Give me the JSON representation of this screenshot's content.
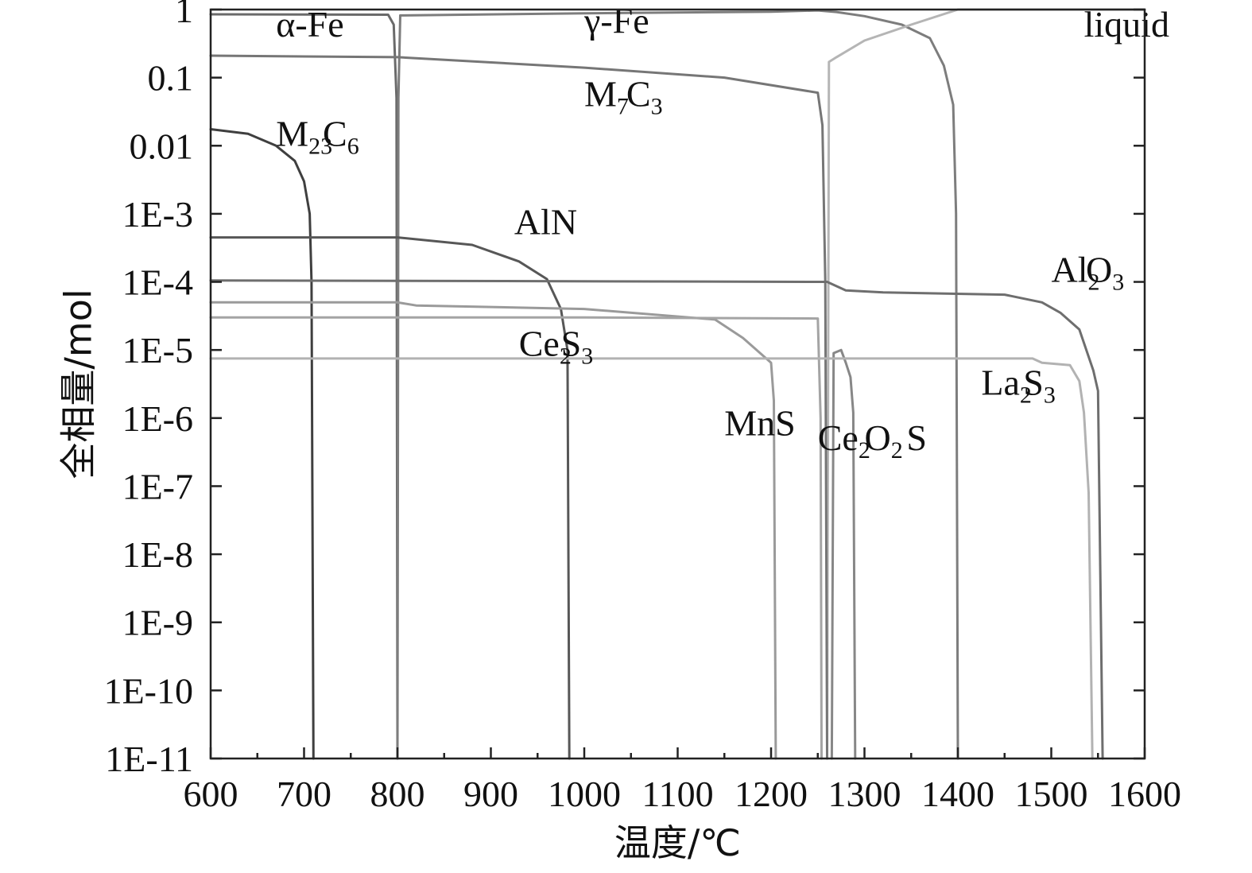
{
  "chart_data": {
    "type": "line",
    "xlabel": "温度/℃",
    "ylabel": "全相量/mol",
    "xlim": [
      600,
      1600
    ],
    "ylim_log10": [
      -11,
      0
    ],
    "y_scale": "log",
    "grid": false,
    "x_ticks": [
      600,
      700,
      800,
      900,
      1000,
      1100,
      1200,
      1300,
      1400,
      1500,
      1600
    ],
    "x_tick_labels": [
      "600",
      "700",
      "800",
      "900",
      "1000",
      "1100",
      "1200",
      "1300",
      "1400",
      "1500",
      "1600"
    ],
    "y_ticks": [
      1,
      0.1,
      0.01,
      0.001,
      0.0001,
      1e-05,
      1e-06,
      1e-07,
      1e-08,
      1e-09,
      1e-10,
      1e-11
    ],
    "y_tick_labels": [
      "1",
      "0.1",
      "0.01",
      "1E-3",
      "1E-4",
      "1E-5",
      "1E-6",
      "1E-7",
      "1E-8",
      "1E-9",
      "1E-10",
      "1E-11"
    ],
    "series": [
      {
        "id": "alpha-fe",
        "color": "#6a6a6a",
        "labels": [
          {
            "text": "α-Fe",
            "sub": "",
            "x": 670,
            "y": 0.4
          }
        ],
        "points": [
          [
            600,
            0.85
          ],
          [
            790,
            0.84
          ],
          [
            796,
            0.6
          ],
          [
            799,
            0.05
          ],
          [
            800,
            1e-11
          ]
        ]
      },
      {
        "id": "gamma-fe",
        "color": "#7d7d7d",
        "labels": [
          {
            "text": "γ-Fe",
            "sub": "",
            "x": 1000,
            "y": 0.45
          }
        ],
        "points": [
          [
            800,
            1e-11
          ],
          [
            801,
            0.05
          ],
          [
            803,
            0.82
          ],
          [
            1000,
            0.88
          ],
          [
            1200,
            0.93
          ],
          [
            1250,
            0.97
          ],
          [
            1270,
            0.92
          ],
          [
            1300,
            0.8
          ],
          [
            1340,
            0.6
          ],
          [
            1370,
            0.38
          ],
          [
            1385,
            0.15
          ],
          [
            1395,
            0.04
          ],
          [
            1398,
            0.001
          ],
          [
            1400,
            1e-11
          ]
        ]
      },
      {
        "id": "liquid",
        "color": "#b5b5b5",
        "labels": [
          {
            "text": "liquid",
            "sub": "",
            "x": 1535,
            "y": 0.4
          }
        ],
        "points": [
          [
            1260,
            1e-11
          ],
          [
            1262,
            0.17
          ],
          [
            1270,
            0.2
          ],
          [
            1300,
            0.35
          ],
          [
            1350,
            0.6
          ],
          [
            1400,
            1.0
          ],
          [
            1600,
            1.0
          ]
        ]
      },
      {
        "id": "m7c3",
        "color": "#767676",
        "labels": [
          {
            "text": "M",
            "sub": "7",
            "x": 1000,
            "y": 0.038
          },
          {
            "text": "C",
            "sub": "3",
            "x": 1045,
            "y": 0.038
          }
        ],
        "points": [
          [
            600,
            0.21
          ],
          [
            800,
            0.2
          ],
          [
            1000,
            0.14
          ],
          [
            1150,
            0.1
          ],
          [
            1250,
            0.06
          ],
          [
            1255,
            0.02
          ],
          [
            1258,
            0.0001
          ],
          [
            1260,
            1e-11
          ]
        ]
      },
      {
        "id": "m23c6",
        "color": "#3f3f3f",
        "labels": [
          {
            "text": "M",
            "sub": "23",
            "x": 670,
            "y": 0.01
          },
          {
            "text": "C",
            "sub": "6",
            "x": 720,
            "y": 0.01
          }
        ],
        "points": [
          [
            600,
            0.0175
          ],
          [
            640,
            0.015
          ],
          [
            670,
            0.01
          ],
          [
            690,
            0.006
          ],
          [
            700,
            0.003
          ],
          [
            706,
            0.001
          ],
          [
            708,
            0.0001
          ],
          [
            710,
            1e-11
          ]
        ]
      },
      {
        "id": "aln",
        "color": "#575757",
        "labels": [
          {
            "text": "AlN",
            "sub": "",
            "x": 925,
            "y": 0.0005
          }
        ],
        "points": [
          [
            600,
            0.00045
          ],
          [
            800,
            0.00045
          ],
          [
            880,
            0.00035
          ],
          [
            930,
            0.0002
          ],
          [
            960,
            0.00011
          ],
          [
            975,
            4e-05
          ],
          [
            982,
            1e-05
          ],
          [
            984,
            1e-11
          ]
        ]
      },
      {
        "id": "al2o3",
        "color": "#6e6e6e",
        "labels": [
          {
            "text": "Al",
            "sub": "2",
            "x": 1500,
            "y": 0.0001
          },
          {
            "text": "O",
            "sub": "3",
            "x": 1537,
            "y": 0.0001
          }
        ],
        "points": [
          [
            600,
            0.000105
          ],
          [
            1260,
            0.0001
          ],
          [
            1280,
            7.5e-05
          ],
          [
            1320,
            7e-05
          ],
          [
            1450,
            6.5e-05
          ],
          [
            1490,
            5e-05
          ],
          [
            1510,
            3.5e-05
          ],
          [
            1530,
            2e-05
          ],
          [
            1545,
            5e-06
          ],
          [
            1550,
            2.5e-06
          ],
          [
            1555,
            1e-11
          ]
        ]
      },
      {
        "id": "ce2s3",
        "color": "#9a9a9a",
        "labels": [
          {
            "text": "Ce",
            "sub": "2",
            "x": 930,
            "y": 8.2e-06
          },
          {
            "text": "S",
            "sub": "3",
            "x": 975,
            "y": 8.2e-06
          }
        ],
        "points": [
          [
            600,
            5e-05
          ],
          [
            800,
            5e-05
          ],
          [
            820,
            4.5e-05
          ],
          [
            1000,
            4e-05
          ],
          [
            1140,
            2.8e-05
          ],
          [
            1170,
            1.5e-05
          ],
          [
            1200,
            6.5e-06
          ],
          [
            1203,
            1.8e-06
          ],
          [
            1205,
            1e-11
          ]
        ]
      },
      {
        "id": "mns",
        "color": "#a4a4a4",
        "labels": [
          {
            "text": "MnS",
            "sub": "",
            "x": 1150,
            "y": 5.6e-07
          }
        ],
        "points": [
          [
            600,
            3e-05
          ],
          [
            1000,
            3e-05
          ],
          [
            1250,
            2.9e-05
          ],
          [
            1253,
            1e-06
          ],
          [
            1254,
            1e-11
          ]
        ]
      },
      {
        "id": "ce2o2s",
        "color": "#878787",
        "labels": [
          {
            "text": "Ce",
            "sub": "2",
            "x": 1250,
            "y": 3.4e-07
          },
          {
            "text": "O",
            "sub": "2",
            "x": 1300,
            "y": 3.4e-07
          },
          {
            "text": "S",
            "sub": "",
            "x": 1345,
            "y": 3.4e-07
          }
        ],
        "points": [
          [
            1265,
            1e-11
          ],
          [
            1267,
            9e-06
          ],
          [
            1275,
            1e-05
          ],
          [
            1280,
            6.5e-06
          ],
          [
            1285,
            4e-06
          ],
          [
            1288,
            1.2e-06
          ],
          [
            1290,
            1e-11
          ]
        ]
      },
      {
        "id": "la2s3",
        "color": "#b2b2b2",
        "labels": [
          {
            "text": "La",
            "sub": "2",
            "x": 1425,
            "y": 2.2e-06
          },
          {
            "text": "S",
            "sub": "3",
            "x": 1470,
            "y": 2.2e-06
          }
        ],
        "points": [
          [
            600,
            7.5e-06
          ],
          [
            1480,
            7.5e-06
          ],
          [
            1490,
            6.5e-06
          ],
          [
            1520,
            6e-06
          ],
          [
            1530,
            3.5e-06
          ],
          [
            1535,
            1.2e-06
          ],
          [
            1540,
            8e-08
          ],
          [
            1544,
            1e-11
          ]
        ]
      }
    ]
  }
}
